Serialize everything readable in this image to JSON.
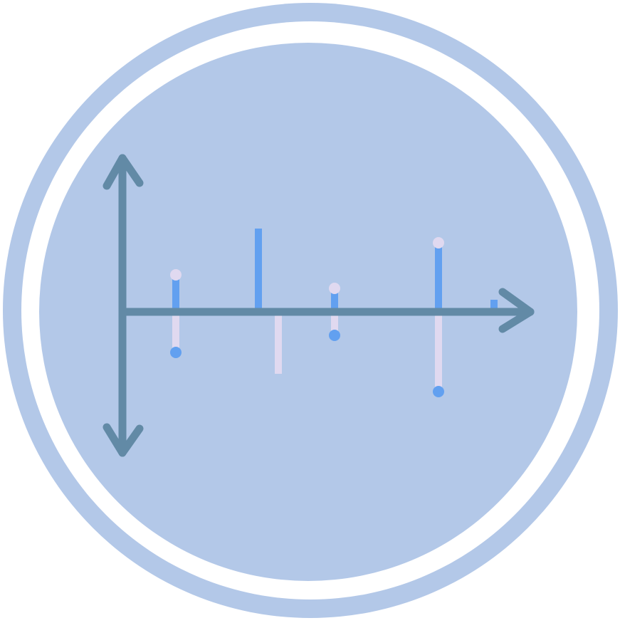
{
  "icon": {
    "name": "stem-plot-icon",
    "colors": {
      "outer_ring": "#b3c8e8",
      "gap": "#ffffff",
      "disc": "#b3c8e8",
      "axis": "#628aa6",
      "stem_up": "#62a0f0",
      "stem_down": "#e0d9f0",
      "marker_light": "#e0d9f0",
      "marker_blue": "#62a0f0"
    },
    "stems": [
      {
        "up": 0.52,
        "down": 0.57,
        "up_marker": "light",
        "down_marker": "blue"
      },
      {
        "up": 1.17,
        "down": 0.87,
        "up_marker": "none",
        "down_marker": "none"
      },
      {
        "up": 0.33,
        "down": 0.33,
        "up_marker": "light",
        "down_marker": "blue"
      },
      {
        "up": 0.97,
        "down": 1.12,
        "up_marker": "light",
        "down_marker": "blue"
      },
      {
        "up": 0.17,
        "down": 0,
        "up_marker": "none",
        "down_marker": "none"
      }
    ]
  }
}
